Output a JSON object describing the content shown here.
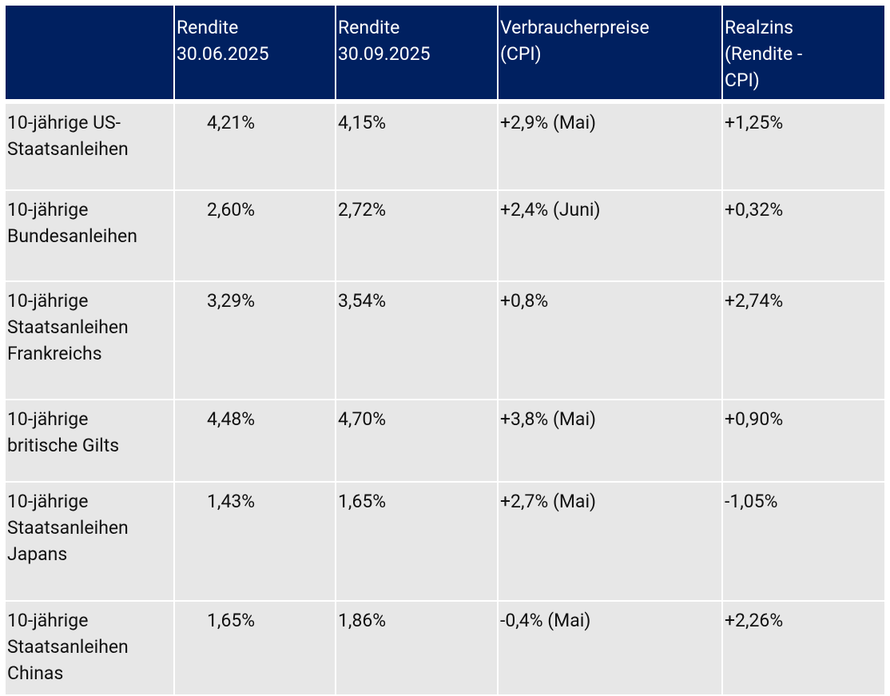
{
  "table": {
    "header": [
      [
        "Rendite",
        "30.06.2025"
      ],
      [
        "Rendite",
        "30.09.2025"
      ],
      [
        "Verbraucherpreise",
        "(CPI)"
      ],
      [
        "Realzins",
        "(Rendite -",
        "CPI)"
      ]
    ],
    "rows": [
      [
        [
          "10-jährige US-",
          "Staatsanleihen"
        ],
        "4,21%",
        "4,15%",
        "+2,9% (Mai)",
        "+1,25%"
      ],
      [
        [
          "10-jährige",
          "Bundesanleihen"
        ],
        "2,60%",
        "2,72%",
        "+2,4% (Juni)",
        "+0,32%"
      ],
      [
        [
          "10-jährige",
          "Staatsanleihen",
          "Frankreichs"
        ],
        "3,29%",
        "3,54%",
        "+0,8%",
        "+2,74%"
      ],
      [
        [
          "10-jährige",
          "britische Gilts"
        ],
        "4,48%",
        "4,70%",
        "+3,8% (Mai)",
        "+0,90%"
      ],
      [
        [
          "10-jährige",
          "Staatsanleihen",
          "Japans"
        ],
        "1,43%",
        "1,65%",
        "+2,7% (Mai)",
        "-1,05%"
      ],
      [
        [
          "10-jährige",
          "Staatsanleihen",
          "Chinas"
        ],
        "1,65%",
        "1,86%",
        "-0,4% (Mai)",
        "+2,26%"
      ]
    ]
  }
}
